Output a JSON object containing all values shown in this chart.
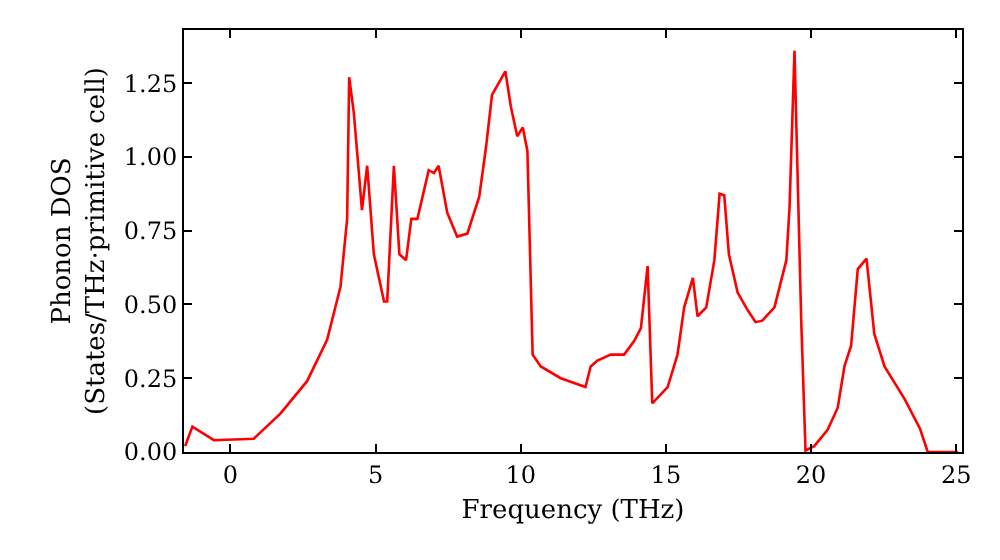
{
  "chart_data": {
    "type": "line",
    "xlabel": "Frequency (THz)",
    "ylabel": "Phonon DOS\n(States/THz·primitive cell)",
    "xlim": [
      -1.6,
      25.2
    ],
    "ylim": [
      0,
      1.43
    ],
    "xticks": [
      0,
      5,
      10,
      15,
      20,
      25
    ],
    "yticks": [
      {
        "value": 0,
        "label": "0.00"
      },
      {
        "value": 0.25,
        "label": "0.25"
      },
      {
        "value": 0.5,
        "label": "0.50"
      },
      {
        "value": 0.75,
        "label": "0.75"
      },
      {
        "value": 1.0,
        "label": "1.00"
      },
      {
        "value": 1.25,
        "label": "1.25"
      }
    ],
    "marker": "none",
    "line_style": "solid",
    "series": [
      {
        "color": "#ff0000",
        "x": [
          -1.56,
          -1.31,
          -0.57,
          0.8,
          1.72,
          2.64,
          3.33,
          3.79,
          4.02,
          4.09,
          4.25,
          4.53,
          4.71,
          4.94,
          5.29,
          5.4,
          5.63,
          5.82,
          6.05,
          6.23,
          6.44,
          6.83,
          7.01,
          7.17,
          7.47,
          7.81,
          8.16,
          8.57,
          8.8,
          9.01,
          9.47,
          9.66,
          9.88,
          10.07,
          10.23,
          10.41,
          10.69,
          11.38,
          12.23,
          12.41,
          12.64,
          13.1,
          13.56,
          13.9,
          14.14,
          14.37,
          14.53,
          15.06,
          15.4,
          15.63,
          15.93,
          16.09,
          16.39,
          16.67,
          16.85,
          17.01,
          17.17,
          17.47,
          17.82,
          18.09,
          18.32,
          18.74,
          19.15,
          19.26,
          19.43,
          19.66,
          19.81,
          20.11,
          20.57,
          20.92,
          21.15,
          21.38,
          21.61,
          21.91,
          22.18,
          22.53,
          23.22,
          23.75,
          24.02,
          25.06
        ],
        "values": [
          0.02,
          0.086,
          0.04,
          0.045,
          0.13,
          0.24,
          0.38,
          0.56,
          0.79,
          1.27,
          1.15,
          0.82,
          0.97,
          0.67,
          0.51,
          0.51,
          0.97,
          0.67,
          0.65,
          0.79,
          0.79,
          0.955,
          0.945,
          0.97,
          0.81,
          0.73,
          0.74,
          0.865,
          1.03,
          1.21,
          1.29,
          1.17,
          1.07,
          1.1,
          1.02,
          0.33,
          0.29,
          0.25,
          0.22,
          0.29,
          0.31,
          0.33,
          0.33,
          0.375,
          0.42,
          0.63,
          0.165,
          0.22,
          0.33,
          0.49,
          0.59,
          0.46,
          0.49,
          0.65,
          0.875,
          0.87,
          0.67,
          0.54,
          0.48,
          0.44,
          0.445,
          0.49,
          0.65,
          0.83,
          1.36,
          0.45,
          0.005,
          0.02,
          0.075,
          0.15,
          0.29,
          0.36,
          0.62,
          0.655,
          0.4,
          0.29,
          0.18,
          0.08,
          0.0,
          0.0
        ]
      }
    ]
  }
}
